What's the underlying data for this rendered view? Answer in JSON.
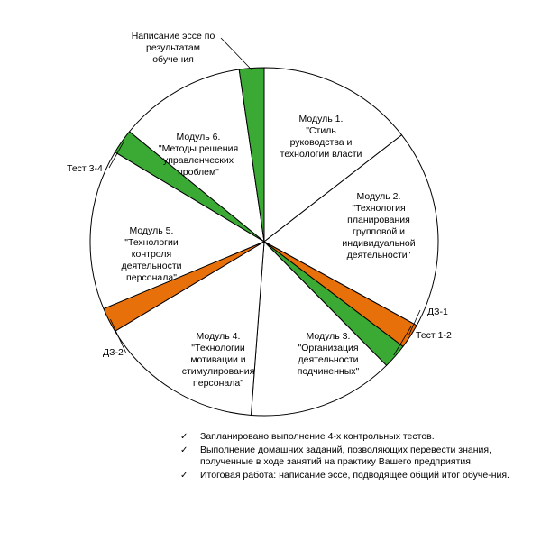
{
  "colors": {
    "module_fill": "#ffffff",
    "test_fill": "#3aaa35",
    "homework_fill": "#e8700a",
    "outline": "#000000"
  },
  "chart_data": {
    "type": "pie",
    "start_angle_deg": 0,
    "direction": "clockwise",
    "slices": [
      {
        "id": "module1",
        "kind": "module",
        "value": 14.5,
        "label": "Модуль 1.\n\"Стиль\nруководства и\nтехнологии власти"
      },
      {
        "id": "module2",
        "kind": "module",
        "value": 18.5,
        "label": "Модуль 2.\n\"Технология\nпланирования\nгрупповой и\nиндивидуальной\nдеятельности\""
      },
      {
        "id": "dz1",
        "kind": "homework",
        "value": 2.3,
        "label": "ДЗ-1"
      },
      {
        "id": "test12",
        "kind": "test",
        "value": 2.3,
        "label": "Тест 1-2"
      },
      {
        "id": "module3",
        "kind": "module",
        "value": 13.6,
        "label": "Модуль 3.\n\"Организация\nдеятельности\nподчиненных\""
      },
      {
        "id": "module4",
        "kind": "module",
        "value": 15.2,
        "label": "Модуль 4.\n\"Технологии\nмотивации и\nстимулирования\nперсонала\""
      },
      {
        "id": "dz2",
        "kind": "homework",
        "value": 2.3,
        "label": "ДЗ-2"
      },
      {
        "id": "module5",
        "kind": "module",
        "value": 14.9,
        "label": "Модуль 5.\n\"Технологии\nконтроля\nдеятельности\nперсонала\""
      },
      {
        "id": "test34",
        "kind": "test",
        "value": 2.3,
        "label": "Тест 3-4"
      },
      {
        "id": "module6",
        "kind": "module",
        "value": 11.8,
        "label": "Модуль 6.\n\"Методы решения\nуправленческих\nпроблем\""
      },
      {
        "id": "essay",
        "kind": "test",
        "value": 2.3,
        "label": "Написание эссе по\nрезультатам\nобучения"
      }
    ]
  },
  "notes": [
    "Запланировано выполнение 4-х контрольных тестов.",
    "Выполнение домашних заданий, позволяющих перевести знания, полученные в ходе занятий на практику Вашего предприятия.",
    "Итоговая работа: написание эссе, подводящее общий итог обуче-ния."
  ]
}
